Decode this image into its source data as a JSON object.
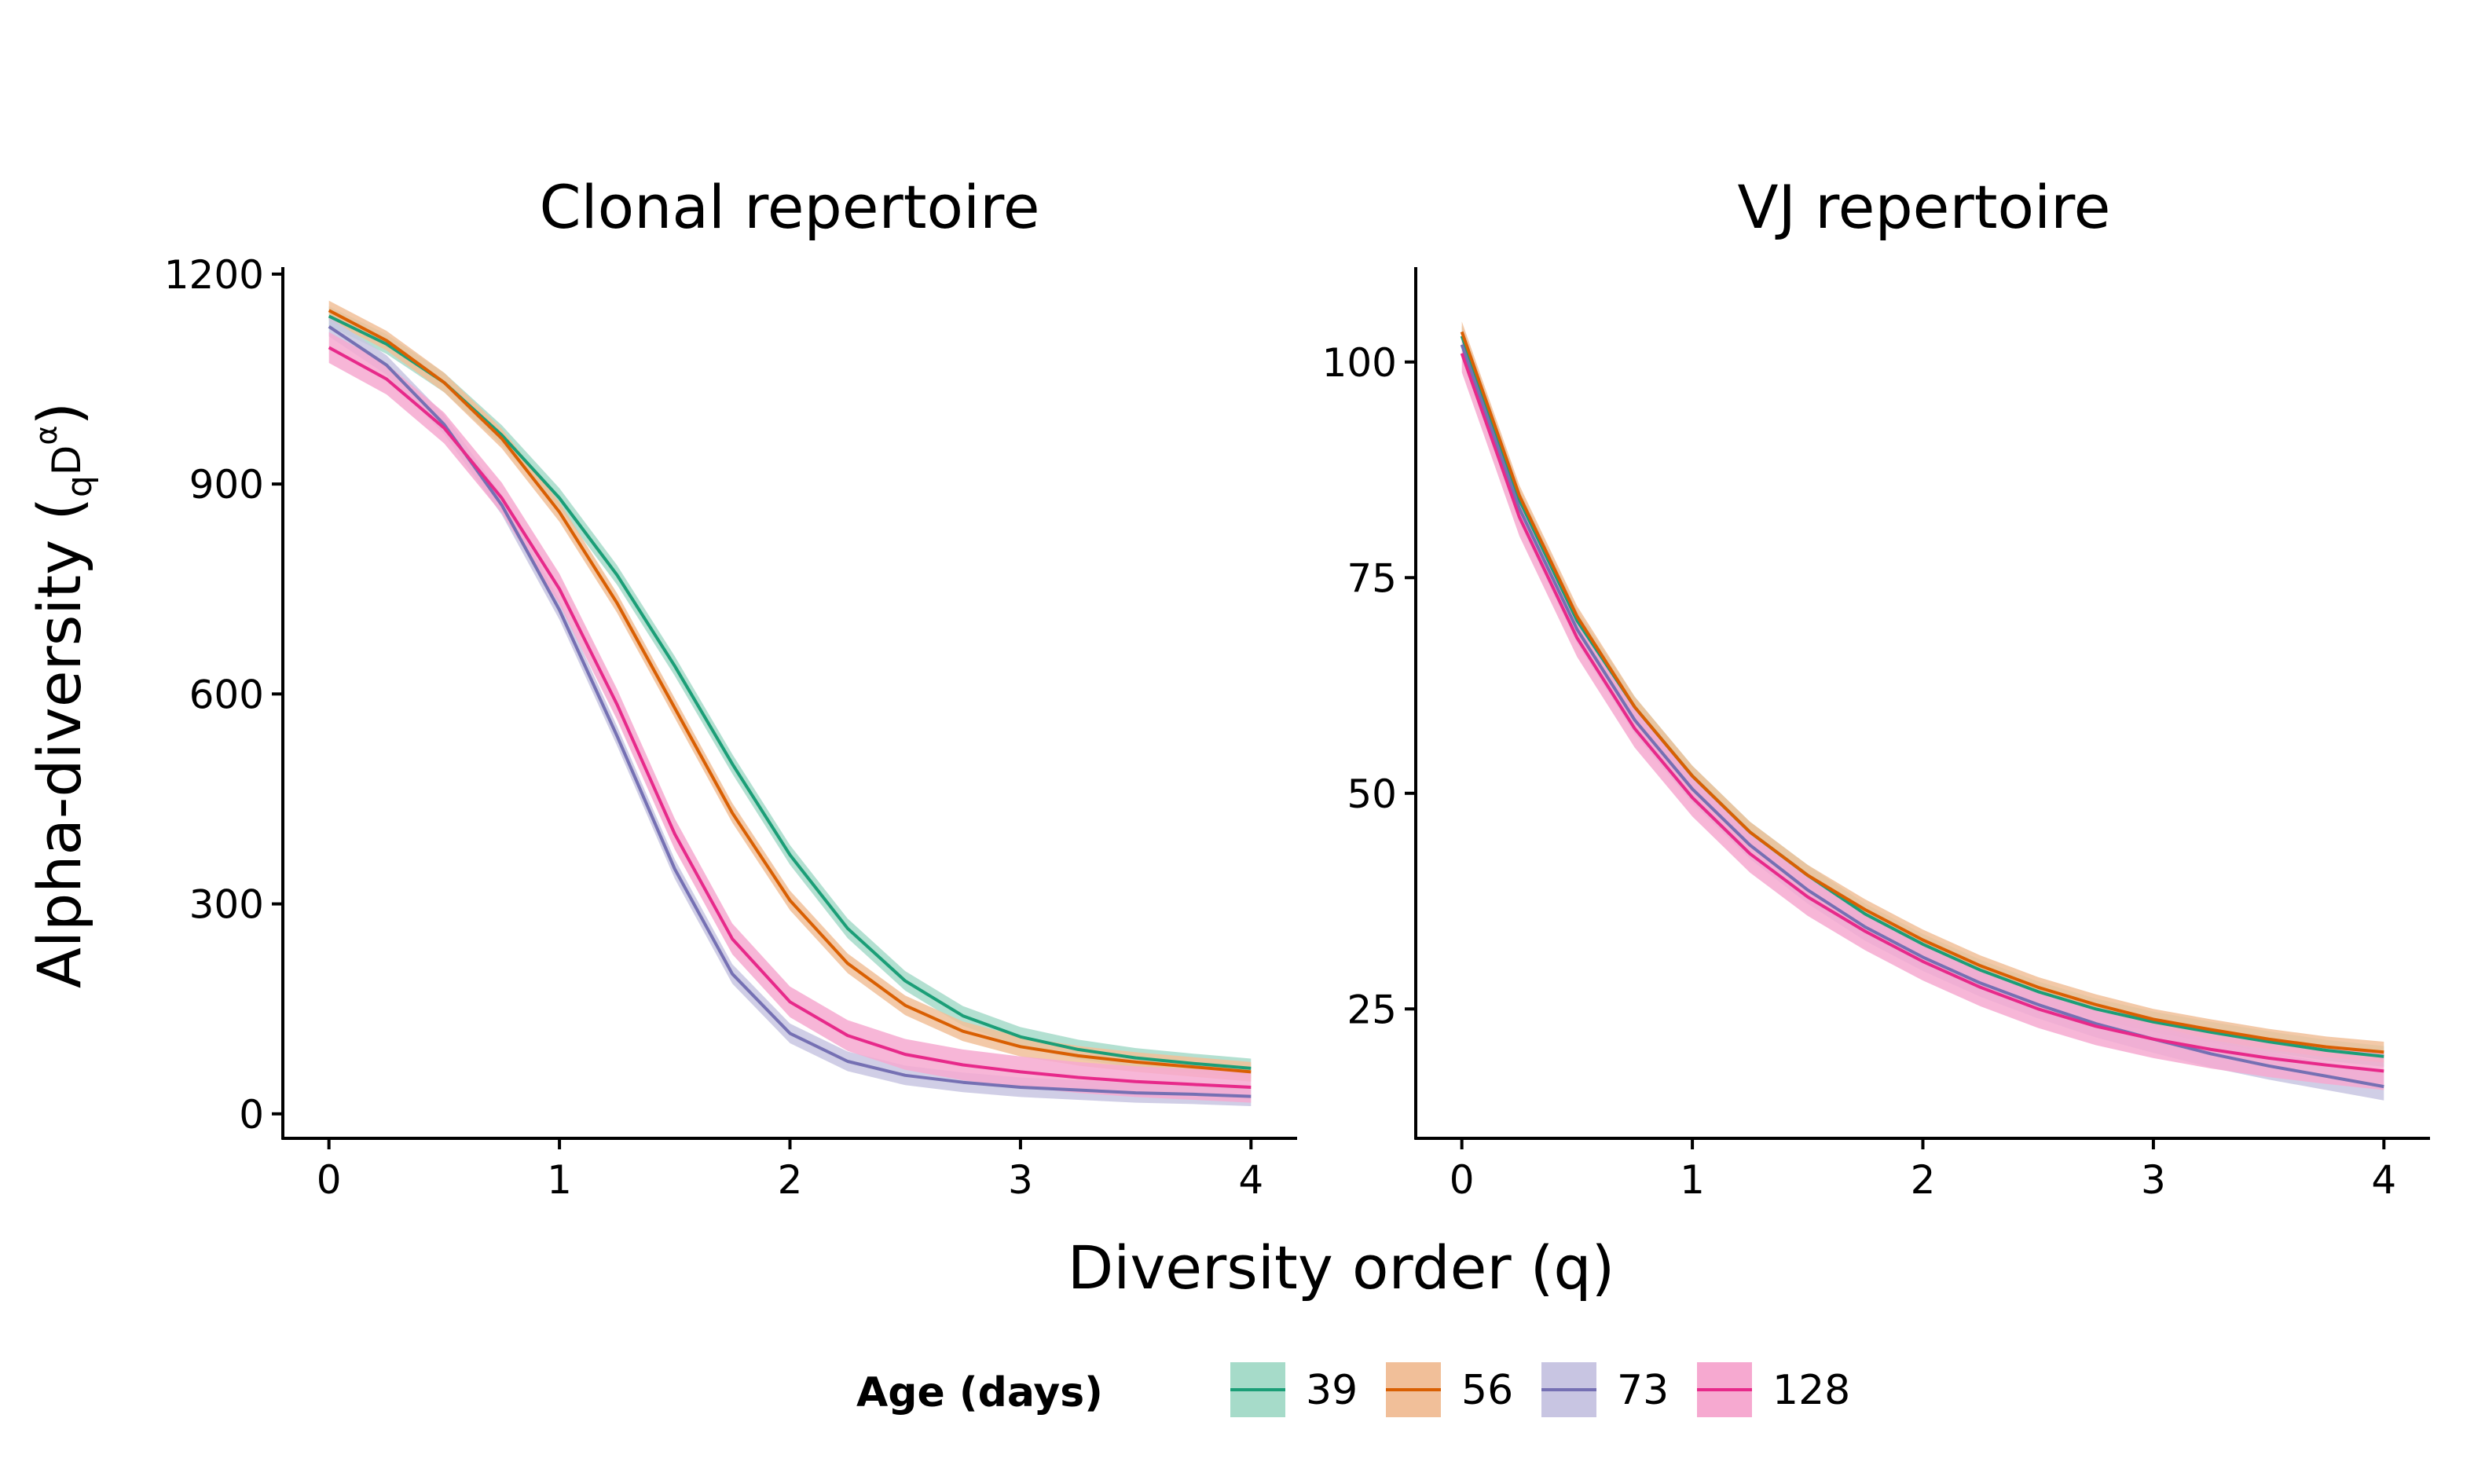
{
  "chart_data": {
    "type": "line",
    "xlabel": "Diversity order (q)",
    "ylabel": {
      "main": "Alpha-diversity (",
      "sub": "q",
      "base": "D",
      "sup": "α",
      "close": ")"
    },
    "legend": {
      "title": "Age (days)",
      "position": "bottom",
      "entries": [
        {
          "label": "39",
          "color": "#1B9E77",
          "fill": "#A6DBC9"
        },
        {
          "label": "56",
          "color": "#D95F02",
          "fill": "#F1BF99"
        },
        {
          "label": "73",
          "color": "#7570B3",
          "fill": "#C8C5E2"
        },
        {
          "label": "128",
          "color": "#E7298A",
          "fill": "#F6A9D0"
        }
      ]
    },
    "grid": false,
    "panels": [
      {
        "title": "Clonal repertoire",
        "xlim": [
          -0.2,
          4.2
        ],
        "ylim": [
          -35,
          1210
        ],
        "xticks": [
          0,
          1,
          2,
          3,
          4
        ],
        "yticks": [
          0,
          300,
          600,
          900,
          1200
        ],
        "x": [
          0,
          0.25,
          0.5,
          0.75,
          1,
          1.25,
          1.5,
          1.75,
          2,
          2.25,
          2.5,
          2.75,
          3,
          3.25,
          3.5,
          3.75,
          4
        ],
        "series": [
          {
            "name": "39",
            "color": "#1B9E77",
            "fill": "#A6DBC9",
            "values": [
              1140,
              1100,
              1045,
              970,
              880,
              770,
              640,
              500,
              370,
              265,
              190,
              140,
              110,
              92,
              80,
              72,
              65
            ],
            "band": 14
          },
          {
            "name": "56",
            "color": "#D95F02",
            "fill": "#F1BF99",
            "values": [
              1148,
              1105,
              1045,
              965,
              860,
              730,
              580,
              430,
              305,
              215,
              155,
              118,
              96,
              83,
              74,
              67,
              60
            ],
            "band": 14
          },
          {
            "name": "73",
            "color": "#7570B3",
            "fill": "#C8C5E2",
            "values": [
              1125,
              1070,
              985,
              870,
              720,
              540,
              350,
              200,
              115,
              75,
              55,
              45,
              38,
              34,
              30,
              28,
              25
            ],
            "band": 14
          },
          {
            "name": "128",
            "color": "#E7298A",
            "fill": "#F6A9D0",
            "values": [
              1095,
              1050,
              980,
              880,
              750,
              585,
              400,
              250,
              160,
              112,
              85,
              70,
              60,
              52,
              46,
              42,
              38
            ],
            "band": 22
          }
        ]
      },
      {
        "title": "VJ repertoire",
        "xlim": [
          -0.2,
          4.2
        ],
        "ylim": [
          10,
          111
        ],
        "xticks": [
          0,
          1,
          2,
          3,
          4
        ],
        "yticks": [
          25,
          50,
          75,
          100
        ],
        "x": [
          0,
          0.25,
          0.5,
          0.75,
          1,
          1.25,
          1.5,
          1.75,
          2,
          2.25,
          2.5,
          2.75,
          3,
          3.25,
          3.5,
          3.75,
          4
        ],
        "series": [
          {
            "name": "39",
            "color": "#1B9E77",
            "fill": "#A6DBC9",
            "values": [
              103,
              84,
              70,
              60,
              52,
              45.5,
              40.5,
              36,
              32.5,
              29.5,
              27,
              25,
              23.5,
              22.3,
              21.2,
              20.2,
              19.5
            ],
            "band": 1.2
          },
          {
            "name": "56",
            "color": "#D95F02",
            "fill": "#F1BF99",
            "values": [
              103.5,
              84.5,
              70.5,
              60,
              52,
              45.5,
              40.5,
              36.5,
              33,
              30,
              27.5,
              25.5,
              23.8,
              22.6,
              21.5,
              20.6,
              20
            ],
            "band": 1.2
          },
          {
            "name": "73",
            "color": "#7570B3",
            "fill": "#C8C5E2",
            "values": [
              102,
              83,
              69,
              58.5,
              50.5,
              44,
              38.8,
              34.5,
              31,
              28,
              25.5,
              23.3,
              21.5,
              19.8,
              18.4,
              17.2,
              16
            ],
            "band": 1.6
          },
          {
            "name": "128",
            "color": "#E7298A",
            "fill": "#F6A9D0",
            "values": [
              101,
              82,
              68,
              57.5,
              49.5,
              43,
              38,
              34,
              30.5,
              27.5,
              25,
              23,
              21.5,
              20.3,
              19.3,
              18.5,
              17.8
            ],
            "band": 2.2
          }
        ]
      }
    ]
  }
}
